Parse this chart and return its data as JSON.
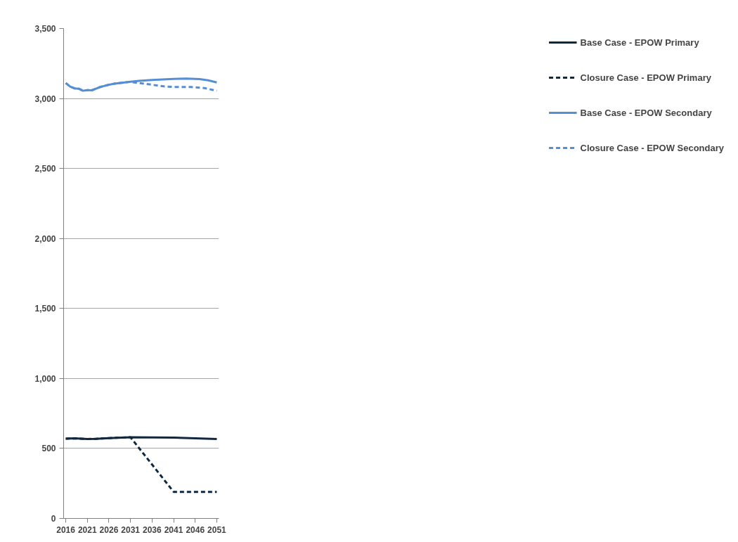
{
  "chart_data": {
    "type": "line",
    "xlim": [
      2015.5,
      2051.5
    ],
    "xticks": [
      2016,
      2021,
      2026,
      2031,
      2036,
      2041,
      2046,
      2051
    ],
    "ylim": [
      0,
      3500
    ],
    "yticks": [
      {
        "value": 0,
        "label": "0"
      },
      {
        "value": 500,
        "label": "500"
      },
      {
        "value": 1000,
        "label": "1,000"
      },
      {
        "value": 1500,
        "label": "1,500"
      },
      {
        "value": 2000,
        "label": "2,000"
      },
      {
        "value": 2500,
        "label": "2,500"
      },
      {
        "value": 3000,
        "label": "3,000"
      },
      {
        "value": 3500,
        "label": "3,500"
      }
    ],
    "grid": "y",
    "legend": "right",
    "series": [
      {
        "name": "Base Case - EPOW Primary",
        "color": "#0e2841",
        "line_style": "solid",
        "x": [
          2016,
          2018,
          2021,
          2023,
          2026,
          2031,
          2036,
          2041,
          2046,
          2051
        ],
        "values": [
          570,
          572,
          568,
          569,
          574,
          580,
          579,
          577,
          573,
          568
        ]
      },
      {
        "name": "Closure Case - EPOW Primary",
        "color": "#0e2841",
        "line_style": "dashed",
        "x": [
          2016,
          2018,
          2021,
          2023,
          2026,
          2031,
          2041,
          2046,
          2051
        ],
        "values": [
          570,
          572,
          568,
          569,
          574,
          580,
          190,
          190,
          190
        ]
      },
      {
        "name": "Base Case - EPOW Secondary",
        "color": "#558ed5",
        "line_style": "solid",
        "x": [
          2016,
          2017,
          2018,
          2019,
          2020,
          2021,
          2022,
          2023,
          2024,
          2025,
          2026,
          2027,
          2028,
          2029,
          2030,
          2031,
          2033,
          2036,
          2041,
          2044,
          2047,
          2049,
          2051
        ],
        "values": [
          3110,
          3085,
          3072,
          3070,
          3055,
          3060,
          3058,
          3070,
          3082,
          3090,
          3098,
          3104,
          3108,
          3112,
          3116,
          3120,
          3126,
          3132,
          3140,
          3142,
          3138,
          3130,
          3115
        ]
      },
      {
        "name": "Closure Case - EPOW Secondary",
        "color": "#558ed5",
        "line_style": "dashed",
        "x": [
          2016,
          2017,
          2018,
          2019,
          2020,
          2021,
          2022,
          2023,
          2024,
          2025,
          2026,
          2027,
          2028,
          2029,
          2030,
          2031,
          2033,
          2036,
          2039,
          2041,
          2045,
          2048,
          2051
        ],
        "values": [
          3110,
          3085,
          3072,
          3070,
          3055,
          3060,
          3058,
          3070,
          3082,
          3090,
          3098,
          3104,
          3108,
          3112,
          3116,
          3118,
          3110,
          3098,
          3085,
          3082,
          3082,
          3075,
          3055
        ]
      }
    ]
  }
}
